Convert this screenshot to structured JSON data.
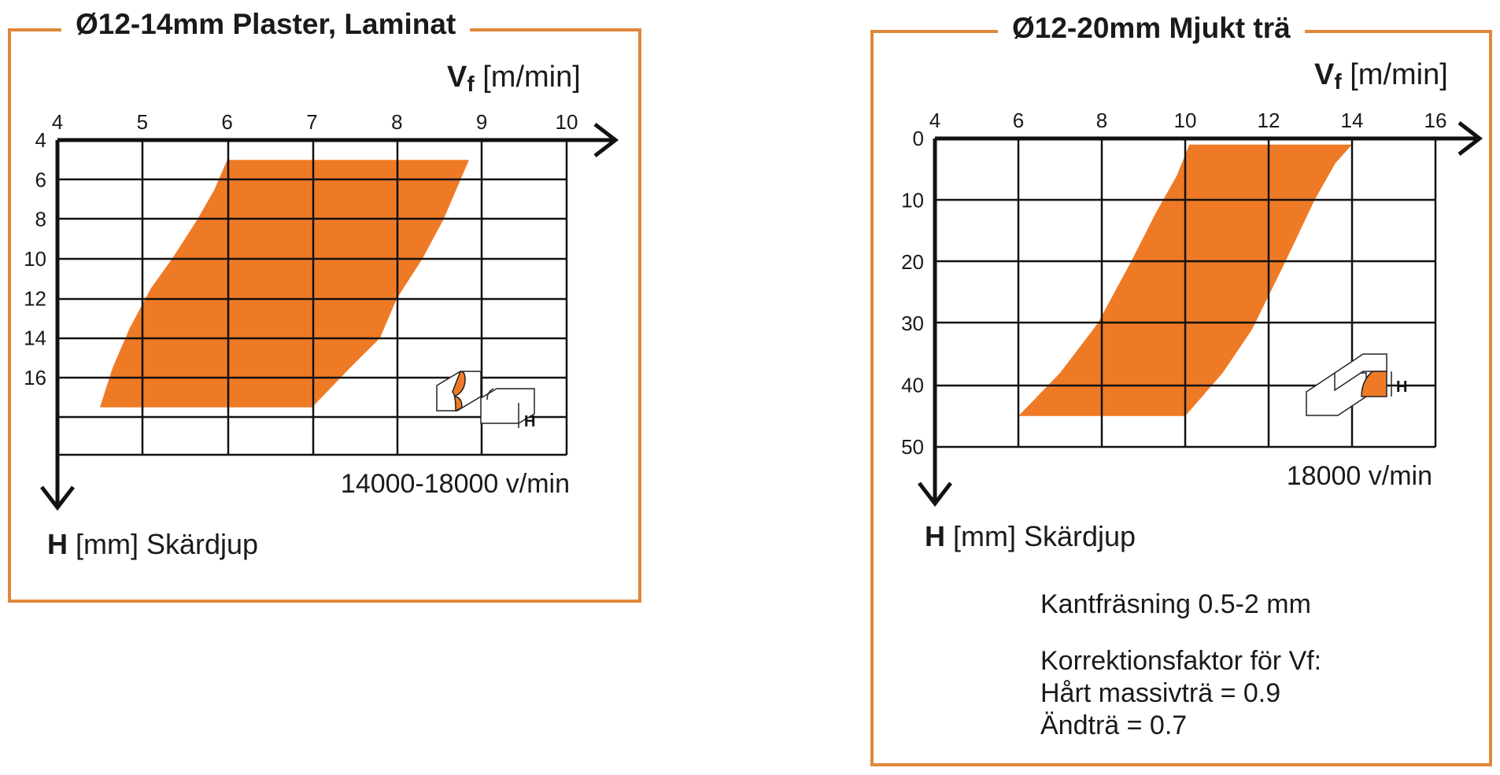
{
  "chart_data": [
    {
      "type": "area",
      "title": "Ø12-14mm Plaster, Laminat",
      "x_axis": {
        "symbol": "V",
        "subscript": "f",
        "unit": "[m/min]",
        "ticks": [
          4,
          5,
          6,
          7,
          8,
          9,
          10
        ],
        "range": [
          4,
          10.4
        ]
      },
      "y_axis": {
        "symbol": "H",
        "unit": "[mm] Skärdjup",
        "ticks": [
          4,
          6,
          8,
          10,
          12,
          14,
          16
        ],
        "range": [
          4,
          20
        ],
        "inverted": true
      },
      "region": {
        "left_edge": [
          [
            6.0,
            5.0
          ],
          [
            5.85,
            6.5
          ],
          [
            5.65,
            8.0
          ],
          [
            5.35,
            10.0
          ],
          [
            5.1,
            11.5
          ],
          [
            4.85,
            13.5
          ],
          [
            4.65,
            15.5
          ],
          [
            4.5,
            17.5
          ]
        ],
        "bottom_edge": [
          [
            4.5,
            17.5
          ],
          [
            7.0,
            17.5
          ]
        ],
        "right_edge": [
          [
            7.0,
            17.5
          ],
          [
            7.45,
            15.5
          ],
          [
            7.8,
            14.0
          ],
          [
            8.0,
            12.0
          ],
          [
            8.3,
            10.0
          ],
          [
            8.55,
            8.0
          ],
          [
            8.75,
            6.0
          ],
          [
            8.85,
            5.0
          ]
        ],
        "top_edge": [
          [
            8.85,
            5.0
          ],
          [
            6.0,
            5.0
          ]
        ]
      },
      "speed_label": "14000-18000 v/min",
      "diagram_label": "H",
      "grid": true
    },
    {
      "type": "area",
      "title": "Ø12-20mm Mjukt trä",
      "x_axis": {
        "symbol": "V",
        "subscript": "f",
        "unit": "[m/min]",
        "ticks": [
          4,
          6,
          8,
          10,
          12,
          14,
          16
        ],
        "range": [
          4,
          16.8
        ]
      },
      "y_axis": {
        "symbol": "H",
        "unit": "[mm] Skärdjup",
        "ticks": [
          0,
          10,
          20,
          30,
          40,
          50
        ],
        "range": [
          0,
          58
        ],
        "inverted": true
      },
      "region": {
        "left_edge": [
          [
            10.1,
            1.0
          ],
          [
            9.8,
            6.0
          ],
          [
            9.3,
            12.0
          ],
          [
            8.7,
            20.0
          ],
          [
            7.9,
            30.0
          ],
          [
            7.0,
            38.0
          ],
          [
            6.0,
            45.0
          ]
        ],
        "bottom_edge": [
          [
            6.0,
            45.0
          ],
          [
            10.0,
            45.0
          ]
        ],
        "right_edge": [
          [
            10.0,
            45.0
          ],
          [
            10.9,
            38.0
          ],
          [
            11.6,
            31.0
          ],
          [
            12.4,
            20.0
          ],
          [
            13.1,
            10.0
          ],
          [
            13.6,
            4.0
          ],
          [
            14.0,
            1.0
          ]
        ],
        "top_edge": [
          [
            14.0,
            1.0
          ],
          [
            10.1,
            1.0
          ]
        ]
      },
      "speed_label": "18000 v/min",
      "diagram_label": "H",
      "grid": true
    }
  ],
  "notes": {
    "edge_milling": "Kantfräsning 0.5-2 mm",
    "correction_title": "Korrektionsfaktor för Vf:",
    "hardwood": "Hårt massivträ = 0.9",
    "endgrain": "Ändträ = 0.7"
  },
  "colors": {
    "fill": "#ef7a26",
    "frame": "#e0873a",
    "grid": "#111111",
    "text": "#1a1a1a"
  }
}
